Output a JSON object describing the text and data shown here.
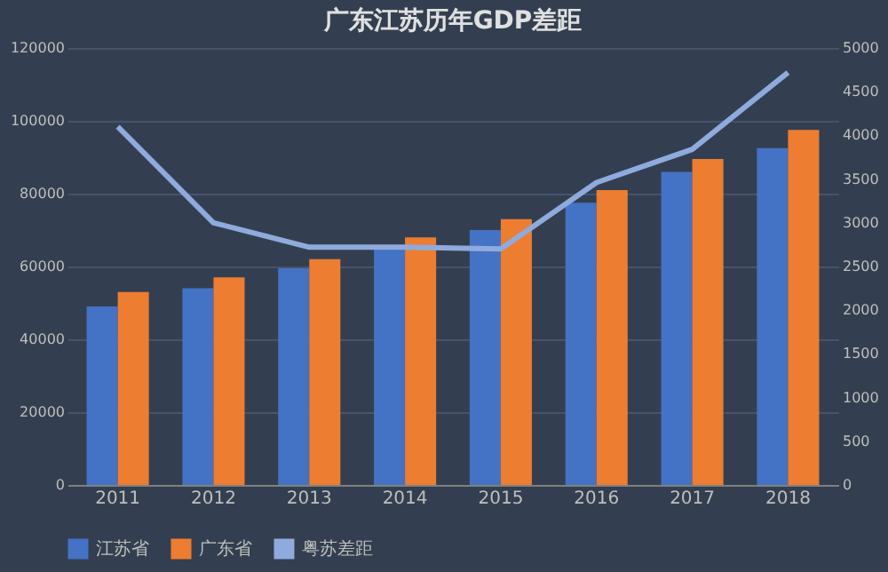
{
  "chart_data": {
    "type": "bar",
    "title": "广东江苏历年GDP差距",
    "categories": [
      "2011",
      "2012",
      "2013",
      "2014",
      "2015",
      "2016",
      "2017",
      "2018"
    ],
    "series": [
      {
        "name": "江苏省",
        "color": "#4472c4",
        "values": [
          49000,
          54000,
          59500,
          65000,
          70000,
          77500,
          86000,
          92500
        ]
      },
      {
        "name": "广东省",
        "color": "#ed7d31",
        "values": [
          53000,
          57000,
          62000,
          68000,
          73000,
          81000,
          89500,
          97500
        ]
      },
      {
        "name": "粤苏差距",
        "type": "line",
        "axis": "y2",
        "color": "#8faadc",
        "values": [
          4100,
          3000,
          2720,
          2720,
          2700,
          3460,
          3840,
          4720
        ]
      }
    ],
    "ylim": [
      0,
      120000
    ],
    "yticks": [
      0,
      20000,
      40000,
      60000,
      80000,
      100000,
      120000
    ],
    "y2lim": [
      0,
      5000
    ],
    "y2ticks": [
      0,
      500,
      1000,
      1500,
      2000,
      2500,
      3000,
      3500,
      4000,
      4500,
      5000
    ],
    "grid": "y",
    "legend": "bottom"
  }
}
